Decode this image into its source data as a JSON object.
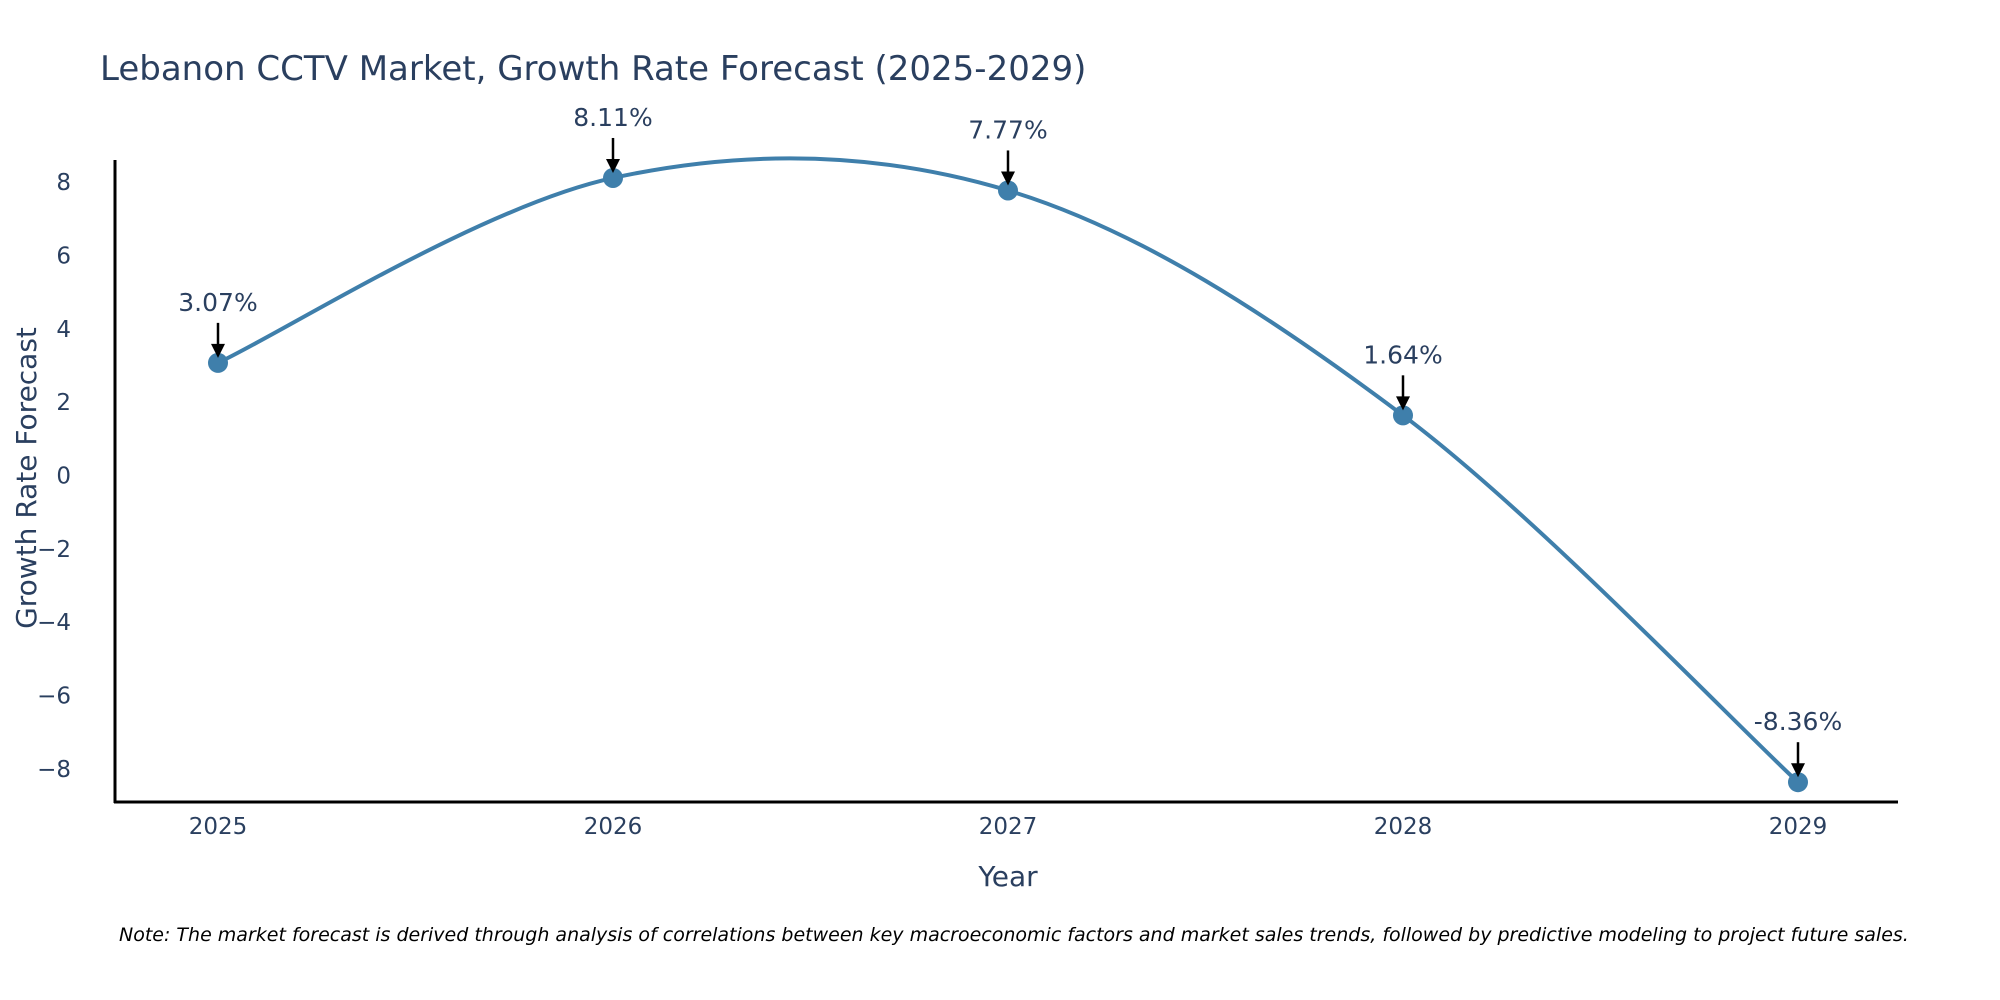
{
  "chart_data": {
    "type": "line",
    "title": "Lebanon CCTV Market, Growth Rate Forecast (2025-2029)",
    "xlabel": "Year",
    "ylabel": "Growth Rate Forecast",
    "categories": [
      "2025",
      "2026",
      "2027",
      "2028",
      "2029"
    ],
    "series": [
      {
        "name": "Growth Rate Forecast",
        "values": [
          3.07,
          8.11,
          7.77,
          1.64,
          -8.36
        ],
        "labels": [
          "3.07%",
          "8.11%",
          "7.77%",
          "1.64%",
          "-8.36%"
        ]
      }
    ],
    "ylim": [
      -8.9,
      8.6
    ],
    "yticks": [
      8,
      6,
      4,
      2,
      0,
      -2,
      -4,
      -6,
      -8
    ],
    "ytick_labels": [
      "8",
      "6",
      "4",
      "2",
      "0",
      "−2",
      "−4",
      "−6",
      "−8"
    ],
    "line_shape": "spline",
    "grid": false,
    "legend": "none",
    "note": "Note: The market forecast is derived through analysis of correlations between key macroeconomic factors and market sales trends, followed by predictive modeling to project future sales."
  },
  "colors": {
    "line": "#3f7fab",
    "marker": "#3f7fab",
    "text": "#2a3f5f",
    "axis": "#000000",
    "arrow": "#000000"
  }
}
